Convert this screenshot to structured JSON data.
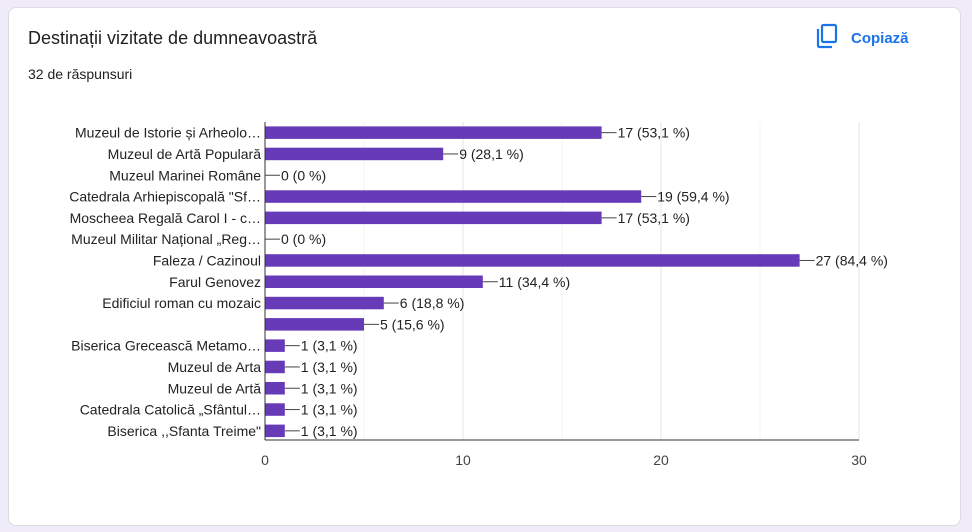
{
  "header": {
    "title": "Destinații vizitate de dumneavoastră",
    "responses": "32 de răspunsuri",
    "copy_label": "Copiază",
    "copy_icon": "copy-icon"
  },
  "colors": {
    "bar": "#673ab7",
    "accent": "#1a73e8"
  },
  "chart_data": {
    "type": "bar",
    "orientation": "horizontal",
    "categories": [
      "Muzeul de Istorie și Arheolo…",
      "Muzeul de Artă Populară",
      "Muzeul Marinei Române",
      "Catedrala Arhiepiscopală \"Sf…",
      "Moscheea Regală Carol I - c…",
      "Muzeul Militar Național „Reg…",
      "Faleza / Cazinoul",
      "Farul Genovez",
      "Edificiul roman cu mozaic",
      "",
      "Biserica Grecească Metamo…",
      "Muzeul de Arta",
      "Muzeul de Artă",
      "Catedrala Catolică „Sfântul…",
      "Biserica ,,Sfanta Treime\""
    ],
    "values": [
      17,
      9,
      0,
      19,
      17,
      0,
      27,
      11,
      6,
      5,
      1,
      1,
      1,
      1,
      1
    ],
    "data_labels": [
      "17 (53,1 %)",
      "9 (28,1 %)",
      "0 (0 %)",
      "19 (59,4 %)",
      "17 (53,1 %)",
      "0 (0 %)",
      "27 (84,4 %)",
      "11 (34,4 %)",
      "6 (18,8 %)",
      "5 (15,6 %)",
      "1 (3,1 %)",
      "1 (3,1 %)",
      "1 (3,1 %)",
      "1 (3,1 %)",
      "1 (3,1 %)"
    ],
    "xlim": [
      0,
      30
    ],
    "x_ticks": [
      "0",
      "10",
      "20",
      "30"
    ],
    "grid": true
  }
}
